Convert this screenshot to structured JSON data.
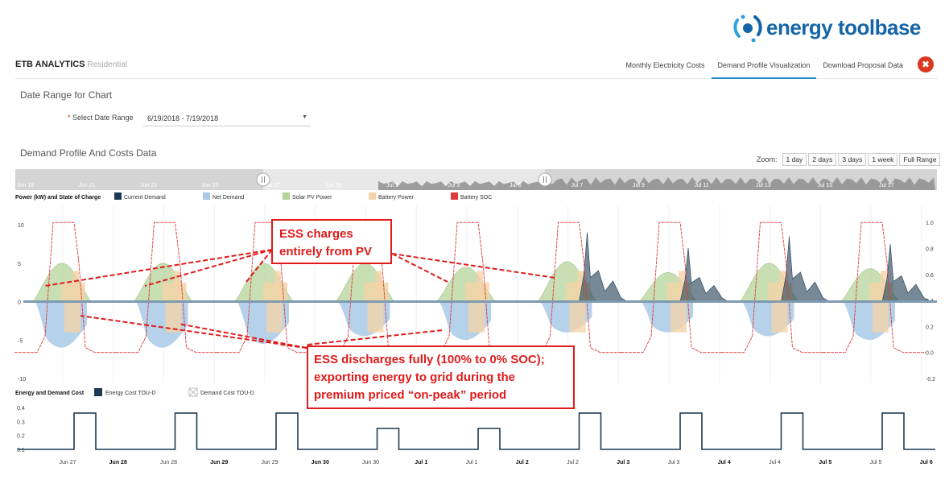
{
  "logo": {
    "text": "energy toolbase",
    "color": "#1565a8"
  },
  "brand": {
    "name": "ETB ANALYTICS",
    "sub": "Residential"
  },
  "nav": {
    "tabs": [
      "Monthly Electricity Costs",
      "Demand Profile Visualization",
      "Download Proposal Data"
    ],
    "active": 1,
    "close_label": "✖"
  },
  "date_section": {
    "title": "Date Range for Chart",
    "label": "Select Date Range",
    "value": "6/19/2018 - 7/19/2018"
  },
  "demand_section": {
    "title": "Demand Profile And Costs Data"
  },
  "zoom": {
    "label": "Zoom:",
    "options": [
      "1 day",
      "2 days",
      "3 days",
      "1 week",
      "Full Range"
    ]
  },
  "navigator": {
    "labels": [
      "Jun 19",
      "Jun 21",
      "Jun 23",
      "Jun 25",
      "Jun 27",
      "Jun 29",
      "Jul 1",
      "Jul 3",
      "Jul 5",
      "Jul 7",
      "Jul 9",
      "Jul 11",
      "Jul 13",
      "Jul 15",
      "Jul 17"
    ]
  },
  "colors": {
    "current_demand": "#1d3a52",
    "net_demand": "#a9c9e6",
    "solar": "#b6d39a",
    "battery_power": "#f4d3a8",
    "battery_soc": "#e03b3b",
    "cost_line": "#1d3a52"
  },
  "callouts": {
    "charge": [
      "ESS charges",
      "entirely from PV"
    ],
    "discharge": [
      "ESS discharges fully (100% to 0% SOC);",
      "exporting energy to grid during the",
      "premium priced “on-peak” period"
    ]
  },
  "chart_data": [
    {
      "type": "area",
      "title": "Power (kW) and State of Charge",
      "legend": [
        "Current Demand",
        "Net Demand",
        "Solar PV Power",
        "Battery Power",
        "Battery SOC"
      ],
      "legend_position": "top-left",
      "ylim": [
        -10,
        12
      ],
      "y_ticks": [
        10,
        5,
        0,
        -5,
        -10
      ],
      "y2lim": [
        -0.2,
        1.1
      ],
      "y2_ticks": [
        "1.0",
        "0.8",
        "0.6",
        "0.4",
        "0.2",
        "0.0",
        "-0.2"
      ],
      "x_labels": [
        "Jun 27",
        "Jun 28",
        "Jun 28",
        "Jun 29",
        "Jun 29",
        "Jun 30",
        "Jun 30",
        "Jul 1",
        "Jul 1",
        "Jul 2",
        "Jul 2",
        "Jul 3",
        "Jul 3",
        "Jul 4",
        "Jul 4",
        "Jul 5",
        "Jul 5",
        "Jul 6"
      ],
      "x_labels_bold": [
        false,
        true,
        false,
        true,
        false,
        true,
        false,
        true,
        false,
        true,
        false,
        true,
        false,
        true,
        false,
        true,
        false,
        true
      ],
      "days": [
        "Jun 27",
        "Jun 28",
        "Jun 29",
        "Jun 30",
        "Jul 1",
        "Jul 2",
        "Jul 3",
        "Jul 4",
        "Jul 5"
      ],
      "solar_peak_kw": [
        5.0,
        5.0,
        5.0,
        5.0,
        4.5,
        5.2,
        3.8,
        5.0,
        4.3
      ],
      "battery_charge_kw": [
        2.5,
        2.5,
        2.5,
        2.5,
        2.5,
        2.5,
        2.5,
        2.5,
        2.5
      ],
      "net_export_kw": [
        -6.0,
        -6.0,
        -5.5,
        -4.5,
        -5.0,
        -4.0,
        -4.0,
        -4.5,
        -5.0
      ],
      "demand_peak_kw": [
        0.0,
        0.0,
        0.0,
        0.0,
        0.0,
        9.0,
        7.0,
        8.5,
        7.5
      ],
      "soc_max": [
        1.0,
        1.0,
        1.0,
        1.0,
        1.0,
        1.0,
        1.0,
        1.0,
        1.0
      ],
      "soc_min": [
        0.0,
        0.0,
        0.0,
        0.0,
        0.0,
        0.0,
        0.0,
        0.0,
        0.0
      ]
    },
    {
      "type": "line",
      "title": "Energy and Demand Cost",
      "legend": [
        "Energy Cost TOU-D",
        "Demand Cost TOU-D"
      ],
      "ylim": [
        0.1,
        0.4
      ],
      "y_ticks": [
        "0.4",
        "0.3",
        "0.2",
        "0.1"
      ],
      "days": [
        "Jun 27",
        "Jun 28",
        "Jun 29",
        "Jun 30",
        "Jul 1",
        "Jul 2",
        "Jul 3",
        "Jul 4",
        "Jul 5"
      ],
      "base_rate": 0.1,
      "peak_rate": [
        0.36,
        0.36,
        0.36,
        0.25,
        0.25,
        0.36,
        0.36,
        0.36,
        0.36
      ]
    }
  ]
}
